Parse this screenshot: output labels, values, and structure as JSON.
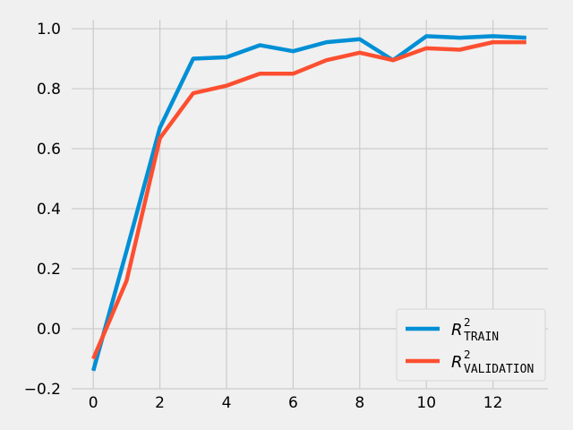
{
  "chart_data": {
    "type": "line",
    "x": [
      0,
      1,
      2,
      3,
      4,
      5,
      6,
      7,
      8,
      9,
      10,
      11,
      12,
      13
    ],
    "series": [
      {
        "name": "R²TRAIN",
        "name_base": "R",
        "name_sup": "2",
        "name_sub": "TRAIN",
        "color": "#008fd5",
        "values": [
          -0.14,
          0.26,
          0.67,
          0.9,
          0.905,
          0.945,
          0.925,
          0.955,
          0.965,
          0.895,
          0.975,
          0.97,
          0.975,
          0.97
        ]
      },
      {
        "name": "R²VALIDATION",
        "name_base": "R",
        "name_sup": "2",
        "name_sub": "VALIDATION",
        "color": "#fc4f30",
        "values": [
          -0.1,
          0.16,
          0.635,
          0.785,
          0.81,
          0.85,
          0.85,
          0.895,
          0.92,
          0.895,
          0.935,
          0.93,
          0.955,
          0.955
        ]
      }
    ],
    "xlim": [
      -0.65,
      13.65
    ],
    "ylim": [
      -0.2,
      1.03
    ],
    "xticks": [
      0,
      2,
      4,
      6,
      8,
      10,
      12
    ],
    "xtick_labels": [
      "0",
      "2",
      "4",
      "6",
      "8",
      "10",
      "12"
    ],
    "yticks": [
      -0.2,
      0.0,
      0.2,
      0.4,
      0.6,
      0.8,
      1.0
    ],
    "ytick_labels": [
      "−0.2",
      "0.0",
      "0.2",
      "0.4",
      "0.6",
      "0.8",
      "1.0"
    ],
    "grid": true,
    "legend_position": "lower-right",
    "title": "",
    "xlabel": "",
    "ylabel": ""
  },
  "colors": {
    "background": "#f0f0f0",
    "grid": "#cbcbcb"
  }
}
